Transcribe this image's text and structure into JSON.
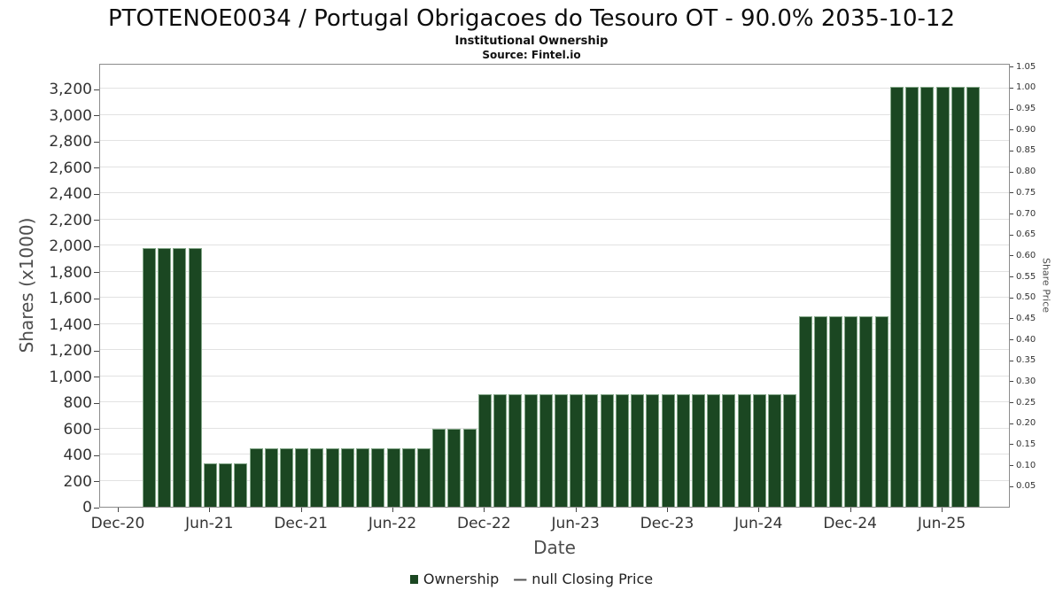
{
  "chart_data": {
    "type": "bar",
    "title": "PTOTENOE0034 / Portugal Obrigacoes do Tesouro OT - 90.0% 2035-10-12",
    "subtitle": "Institutional Ownership",
    "source": "Source: Fintel.io",
    "xlabel": "Date",
    "ylabel_left": "Shares (x1000)",
    "ylabel_right": "Share Price",
    "ylim_left": [
      0,
      3400
    ],
    "ylim_right": [
      0,
      1.058
    ],
    "grid": true,
    "colors": {
      "bar_fill": "#1b4722",
      "bar_edge": "#86a98b",
      "grid": "#e2e2e2",
      "axis_border": "#8c8c8c",
      "tick_label": "#333333",
      "axis_title": "#4d4d4d"
    },
    "x_ticks": {
      "labels": [
        "Dec-20",
        "Jun-21",
        "Dec-21",
        "Jun-22",
        "Dec-22",
        "Jun-23",
        "Dec-23",
        "Jun-24",
        "Dec-24",
        "Jun-25"
      ],
      "month_offsets": [
        0,
        6,
        12,
        18,
        24,
        30,
        36,
        42,
        48,
        54
      ]
    },
    "y_ticks_left": {
      "values": [
        0,
        200,
        400,
        600,
        800,
        1000,
        1200,
        1400,
        1600,
        1800,
        2000,
        2200,
        2400,
        2600,
        2800,
        3000,
        3200
      ],
      "labels": [
        "0",
        "200",
        "400",
        "600",
        "800",
        "1,000",
        "1,200",
        "1,400",
        "1,600",
        "1,800",
        "2,000",
        "2,200",
        "2,400",
        "2,600",
        "2,800",
        "3,000",
        "3,200"
      ]
    },
    "y_ticks_right": {
      "values": [
        0.05,
        0.1,
        0.15,
        0.2,
        0.25,
        0.3,
        0.35,
        0.4,
        0.45,
        0.5,
        0.55,
        0.6,
        0.65,
        0.7,
        0.75,
        0.8,
        0.85,
        0.9,
        0.95,
        1.0,
        1.05
      ],
      "labels": [
        "0.05",
        "0.10",
        "0.15",
        "0.20",
        "0.25",
        "0.30",
        "0.35",
        "0.40",
        "0.45",
        "0.50",
        "0.55",
        "0.60",
        "0.65",
        "0.70",
        "0.75",
        "0.80",
        "0.85",
        "0.90",
        "0.95",
        "1.00",
        "1.05"
      ]
    },
    "legend": {
      "position": "bottom",
      "ownership_label": "Ownership",
      "dash_glyph": "—",
      "closing_price_label": "null Closing Price"
    },
    "series": [
      {
        "name": "Ownership",
        "type": "bar",
        "start_month_offset": 2,
        "values": [
          1980,
          1980,
          1980,
          1980,
          330,
          330,
          330,
          450,
          450,
          450,
          450,
          450,
          450,
          450,
          450,
          450,
          450,
          450,
          450,
          600,
          600,
          600,
          860,
          860,
          860,
          860,
          860,
          860,
          860,
          860,
          860,
          860,
          860,
          860,
          860,
          860,
          860,
          860,
          860,
          860,
          860,
          860,
          860,
          1460,
          1460,
          1460,
          1460,
          1460,
          1460,
          3220,
          3220,
          3220,
          3220,
          3220,
          3220
        ],
        "segments": [
          {
            "from": "Feb-21",
            "to": "May-21",
            "value": 1980
          },
          {
            "from": "Jun-21",
            "to": "Aug-21",
            "value": 330
          },
          {
            "from": "Sep-21",
            "to": "Aug-22",
            "value": 450
          },
          {
            "from": "Sep-22",
            "to": "Nov-22",
            "value": 600
          },
          {
            "from": "Dec-22",
            "to": "Aug-24",
            "value": 860
          },
          {
            "from": "Sep-24",
            "to": "Feb-25",
            "value": 1460
          },
          {
            "from": "Mar-25",
            "to": "Aug-25",
            "value": 3220
          }
        ]
      }
    ]
  }
}
